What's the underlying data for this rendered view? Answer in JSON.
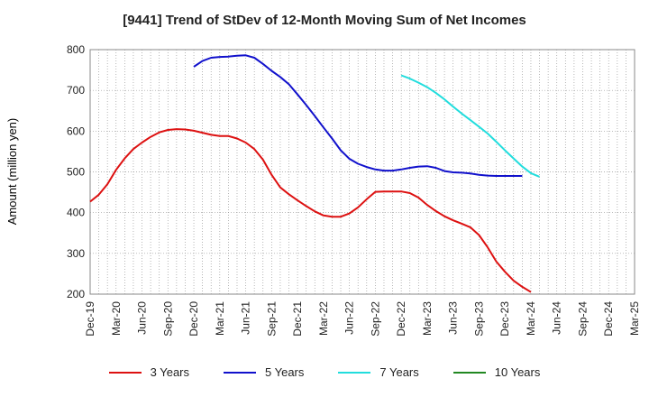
{
  "chart_data": {
    "type": "line",
    "title": "[9441]  Trend of StDev of 12-Month Moving Sum of Net Incomes",
    "ylabel": "Amount (million yen)",
    "xlabel": "",
    "ylim": [
      200,
      800
    ],
    "y_ticks": [
      200,
      300,
      400,
      500,
      600,
      700,
      800
    ],
    "x_ticks": [
      "Dec-19",
      "Mar-20",
      "Jun-20",
      "Sep-20",
      "Dec-20",
      "Mar-21",
      "Jun-21",
      "Sep-21",
      "Dec-21",
      "Mar-22",
      "Jun-22",
      "Sep-22",
      "Dec-22",
      "Mar-23",
      "Jun-23",
      "Sep-23",
      "Dec-23",
      "Mar-24",
      "Jun-24",
      "Sep-24",
      "Dec-24",
      "Mar-25"
    ],
    "grid": true,
    "legend_position": "bottom",
    "series": [
      {
        "name": "3 Years",
        "color": "#dd1111",
        "start_index": 0,
        "values": [
          427,
          444,
          470,
          505,
          533,
          556,
          572,
          586,
          597,
          603,
          605,
          604,
          601,
          596,
          591,
          588,
          588,
          582,
          572,
          556,
          530,
          493,
          462,
          445,
          430,
          416,
          403,
          393,
          390,
          390,
          398,
          413,
          433,
          451,
          452,
          452,
          452,
          448,
          437,
          419,
          404,
          391,
          381,
          373,
          364,
          345,
          315,
          280,
          255,
          233,
          218,
          205
        ]
      },
      {
        "name": "5 Years",
        "color": "#1111cc",
        "start_index": 12,
        "values": [
          758,
          772,
          780,
          782,
          783,
          785,
          786,
          780,
          765,
          748,
          733,
          715,
          690,
          664,
          637,
          609,
          582,
          553,
          532,
          520,
          512,
          506,
          503,
          503,
          506,
          510,
          513,
          514,
          510,
          502,
          499,
          498,
          496,
          493,
          491,
          490,
          490,
          490,
          490
        ]
      },
      {
        "name": "7 Years",
        "color": "#22dddd",
        "start_index": 36,
        "values": [
          737,
          729,
          719,
          708,
          694,
          678,
          660,
          643,
          627,
          611,
          594,
          574,
          553,
          533,
          513,
          497,
          488
        ]
      },
      {
        "name": "10 Years",
        "color": "#228822",
        "start_index": 0,
        "values": []
      }
    ]
  }
}
